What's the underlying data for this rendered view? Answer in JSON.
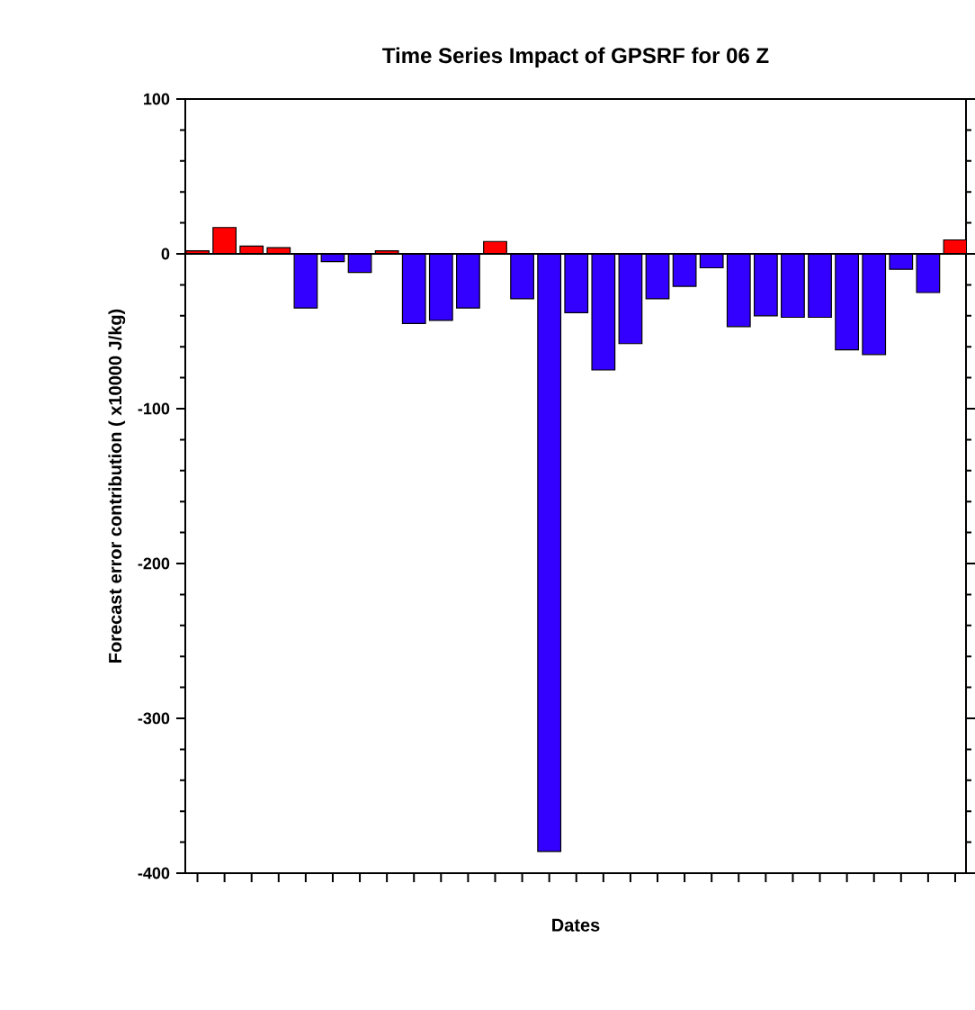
{
  "chart_data": {
    "type": "bar",
    "title": "Time Series Impact of GPSRF for 06 Z",
    "xlabel": "Dates",
    "ylabel": "Forecast error contribution ( x10000 J/kg)",
    "categories": [
      null,
      null,
      null,
      null,
      null,
      null,
      null,
      null,
      null,
      null,
      null,
      null,
      null,
      null,
      null,
      null,
      null,
      null,
      null,
      null,
      null,
      null,
      null,
      null,
      null,
      null,
      null,
      null,
      null
    ],
    "values": [
      2,
      17,
      5,
      4,
      -35,
      -5,
      -12,
      2,
      -45,
      -43,
      -35,
      8,
      -29,
      -386,
      -38,
      -75,
      -58,
      -29,
      -21,
      -9,
      -47,
      -40,
      -41,
      -41,
      -62,
      -65,
      -10,
      -25,
      9
    ],
    "colors": [
      "#ff0000",
      "#ff0000",
      "#ff0000",
      "#ff0000",
      "#3300ff",
      "#3300ff",
      "#3300ff",
      "#ff0000",
      "#3300ff",
      "#3300ff",
      "#3300ff",
      "#ff0000",
      "#3300ff",
      "#3300ff",
      "#3300ff",
      "#3300ff",
      "#3300ff",
      "#3300ff",
      "#3300ff",
      "#3300ff",
      "#3300ff",
      "#3300ff",
      "#3300ff",
      "#3300ff",
      "#3300ff",
      "#3300ff",
      "#3300ff",
      "#3300ff",
      "#ff0000"
    ],
    "ylim": [
      -400,
      100
    ],
    "yticks": [
      -400,
      -300,
      -200,
      -100,
      0,
      100
    ]
  }
}
